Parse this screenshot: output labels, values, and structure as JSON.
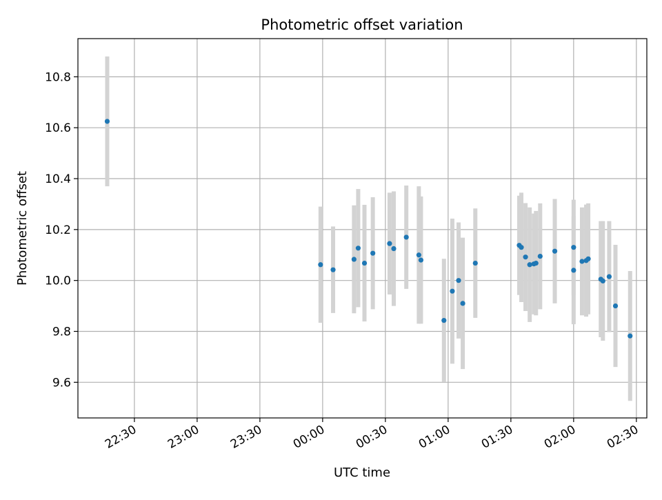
{
  "chart_data": {
    "type": "scatter",
    "title": "Photometric offset variation",
    "xlabel": "UTC time",
    "ylabel": "Photometric offset",
    "x_ticks": [
      "22:30",
      "23:00",
      "23:30",
      "00:00",
      "00:30",
      "01:00",
      "01:30",
      "02:00",
      "02:30"
    ],
    "y_ticks": [
      "9.6",
      "9.8",
      "10.0",
      "10.2",
      "10.4",
      "10.6",
      "10.8"
    ],
    "y_tick_values": [
      9.6,
      9.8,
      10.0,
      10.2,
      10.4,
      10.6,
      10.8
    ],
    "xlim": [
      "22:03",
      "02:35"
    ],
    "ylim": [
      9.46,
      10.95
    ],
    "grid": true,
    "marker_color": "#1f77b4",
    "errorbar_color": "#d3d3d3",
    "points": [
      {
        "x": "22:17",
        "y": 10.625,
        "err": 0.255
      },
      {
        "x": "23:59",
        "y": 10.062,
        "err": 0.228
      },
      {
        "x": "00:05",
        "y": 10.042,
        "err": 0.17
      },
      {
        "x": "00:15",
        "y": 10.083,
        "err": 0.212
      },
      {
        "x": "00:17",
        "y": 10.127,
        "err": 0.232
      },
      {
        "x": "00:20",
        "y": 10.068,
        "err": 0.229
      },
      {
        "x": "00:24",
        "y": 10.107,
        "err": 0.22
      },
      {
        "x": "00:32",
        "y": 10.145,
        "err": 0.2
      },
      {
        "x": "00:34",
        "y": 10.125,
        "err": 0.225
      },
      {
        "x": "00:40",
        "y": 10.17,
        "err": 0.203
      },
      {
        "x": "00:46",
        "y": 10.1,
        "err": 0.27
      },
      {
        "x": "00:47",
        "y": 10.08,
        "err": 0.25
      },
      {
        "x": "00:58",
        "y": 9.843,
        "err": 0.242
      },
      {
        "x": "01:02",
        "y": 9.958,
        "err": 0.285
      },
      {
        "x": "01:05",
        "y": 10.0,
        "err": 0.228
      },
      {
        "x": "01:07",
        "y": 9.91,
        "err": 0.258
      },
      {
        "x": "01:13",
        "y": 10.068,
        "err": 0.215
      },
      {
        "x": "01:34",
        "y": 10.138,
        "err": 0.195
      },
      {
        "x": "01:35",
        "y": 10.13,
        "err": 0.215
      },
      {
        "x": "01:37",
        "y": 10.092,
        "err": 0.212
      },
      {
        "x": "01:39",
        "y": 10.062,
        "err": 0.225
      },
      {
        "x": "01:41",
        "y": 10.065,
        "err": 0.198
      },
      {
        "x": "01:42",
        "y": 10.068,
        "err": 0.205
      },
      {
        "x": "01:44",
        "y": 10.095,
        "err": 0.208
      },
      {
        "x": "01:51",
        "y": 10.115,
        "err": 0.205
      },
      {
        "x": "02:00",
        "y": 10.04,
        "err": 0.212
      },
      {
        "x": "02:00",
        "y": 10.13,
        "err": 0.187
      },
      {
        "x": "02:04",
        "y": 10.075,
        "err": 0.212
      },
      {
        "x": "02:06",
        "y": 10.078,
        "err": 0.22
      },
      {
        "x": "02:07",
        "y": 10.085,
        "err": 0.218
      },
      {
        "x": "02:13",
        "y": 10.005,
        "err": 0.228
      },
      {
        "x": "02:14",
        "y": 9.998,
        "err": 0.235
      },
      {
        "x": "02:17",
        "y": 10.015,
        "err": 0.218
      },
      {
        "x": "02:20",
        "y": 9.9,
        "err": 0.24
      },
      {
        "x": "02:27",
        "y": 9.782,
        "err": 0.255
      }
    ]
  }
}
